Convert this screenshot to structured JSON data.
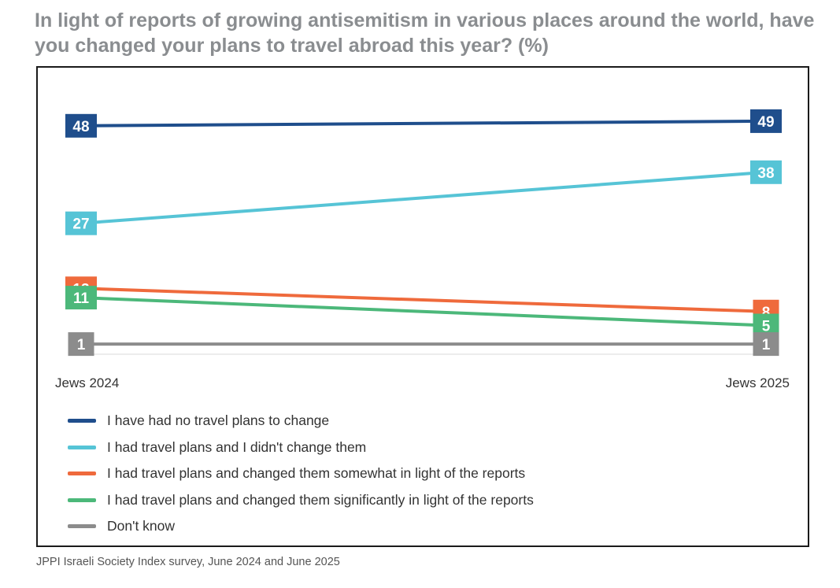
{
  "title": "In light of reports of growing antisemitism in various places around the world, have you changed your plans to travel abroad this year? (%)",
  "source": "JPPI Israeli Society Index survey, June 2024 and June 2025",
  "chart_data": {
    "type": "line",
    "categories": [
      "Jews 2024",
      "Jews 2025"
    ],
    "ylim": [
      0,
      55
    ],
    "grid": false,
    "legend_position": "bottom-left",
    "series": [
      {
        "name": "I have had no travel plans to change",
        "values": [
          48,
          49
        ],
        "color": "#1f4e8c"
      },
      {
        "name": "I had travel plans and I didn't change them",
        "values": [
          27,
          38
        ],
        "color": "#56c4d6"
      },
      {
        "name": "I had travel plans and changed them somewhat in light of the reports",
        "values": [
          13,
          8
        ],
        "color": "#ef6a3c"
      },
      {
        "name": "I had travel plans and changed them significantly in light of the reports",
        "values": [
          11,
          5
        ],
        "color": "#4cb87a"
      },
      {
        "name": "Don't know",
        "values": [
          1,
          1
        ],
        "color": "#8c8c8c"
      }
    ]
  }
}
